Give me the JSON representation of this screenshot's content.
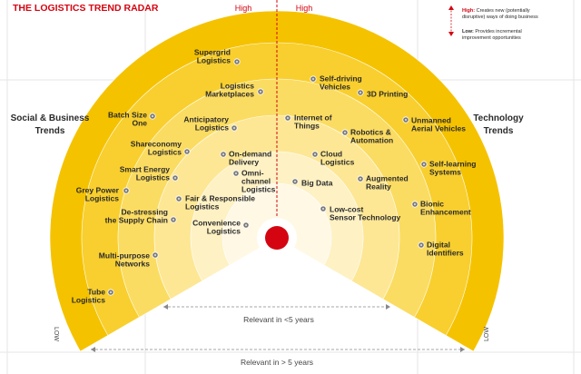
{
  "title": "THE LOGISTICS TREND RADAR",
  "high_left": "High",
  "high_right": "High",
  "legend": {
    "high_key": "High:",
    "high_text": [
      "Creates new (potentially",
      "disruptive) ways of doing business"
    ],
    "low_key": "Low:",
    "low_text": [
      "Provides incremental",
      "improvement opportunities"
    ]
  },
  "left_title": [
    "Social & Business",
    "Trends"
  ],
  "right_title": [
    "Technology",
    "Trends"
  ],
  "near_label": "Relevant in <5 years",
  "far_label": "Relevant in > 5 years",
  "low_left": "LOW",
  "low_right": "LOW",
  "trends": [
    {
      "label": [
        "Supergrid",
        "Logistics"
      ]
    },
    {
      "label": [
        "Logistics",
        "Marketplaces"
      ]
    },
    {
      "label": [
        "Batch Size",
        "One"
      ]
    },
    {
      "label": [
        "Anticipatory",
        "Logistics"
      ]
    },
    {
      "label": [
        "Shareconomy",
        "Logistics"
      ]
    },
    {
      "label": [
        "On-demand",
        "Delivery"
      ]
    },
    {
      "label": [
        "Smart Energy",
        "Logistics"
      ]
    },
    {
      "label": [
        "Omni-",
        "channel",
        "Logistics"
      ]
    },
    {
      "label": [
        "Grey Power",
        "Logistics"
      ]
    },
    {
      "label": [
        "Fair & Responsible",
        "Logistics"
      ]
    },
    {
      "label": [
        "De-stressing",
        "the Supply Chain"
      ]
    },
    {
      "label": [
        "Convenience",
        "Logistics"
      ]
    },
    {
      "label": [
        "Multi-purpose",
        "Networks"
      ]
    },
    {
      "label": [
        "Tube",
        "Logistics"
      ]
    },
    {
      "label": [
        "Self-driving",
        "Vehicles"
      ]
    },
    {
      "label": [
        "3D Printing"
      ]
    },
    {
      "label": [
        "Internet of",
        "Things"
      ]
    },
    {
      "label": [
        "Robotics &",
        "Automation"
      ]
    },
    {
      "label": [
        "Unmanned",
        "Aerial Vehicles"
      ]
    },
    {
      "label": [
        "Cloud",
        "Logistics"
      ]
    },
    {
      "label": [
        "Self-learning",
        "Systems"
      ]
    },
    {
      "label": [
        "Big Data"
      ]
    },
    {
      "label": [
        "Augmented",
        "Reality"
      ]
    },
    {
      "label": [
        "Bionic",
        "Enhancement"
      ]
    },
    {
      "label": [
        "Low-cost",
        "Sensor Technology"
      ]
    },
    {
      "label": [
        "Digital",
        "Identifiers"
      ]
    }
  ]
}
